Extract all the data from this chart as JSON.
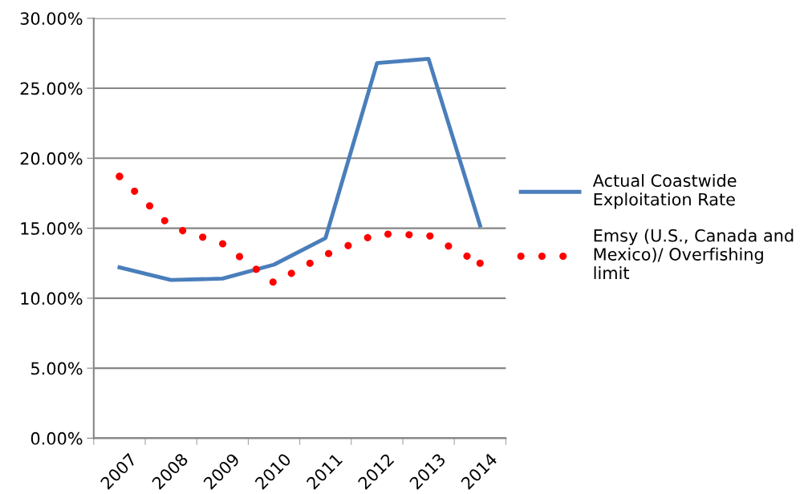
{
  "chart_data": {
    "type": "line",
    "categories": [
      "2007",
      "2008",
      "2009",
      "2010",
      "2011",
      "2012",
      "2013",
      "2014"
    ],
    "series": [
      {
        "name": "Actual Coastwide Exploitation Rate",
        "color": "#4a7ebb",
        "line_style": "solid",
        "values": [
          12.2,
          11.3,
          11.4,
          12.4,
          14.3,
          26.8,
          27.1,
          15.2
        ]
      },
      {
        "name": "Emsy (U.S., Canada and Mexico)/ Overfishing limit",
        "color": "#ff0000",
        "line_style": "dotted",
        "values": [
          18.7,
          15.1,
          13.9,
          11.1,
          13.1,
          14.6,
          14.5,
          12.5
        ]
      }
    ],
    "ylim": [
      0,
      30
    ],
    "yticks": [
      {
        "value": 0,
        "label": "0.00%"
      },
      {
        "value": 5,
        "label": "5.00%"
      },
      {
        "value": 10,
        "label": "10.00%"
      },
      {
        "value": 15,
        "label": "15.00%"
      },
      {
        "value": 20,
        "label": "20.00%"
      },
      {
        "value": 25,
        "label": "25.00%"
      },
      {
        "value": 30,
        "label": "30.00%"
      }
    ],
    "grid": "y",
    "legend": "right",
    "marker": "none"
  }
}
